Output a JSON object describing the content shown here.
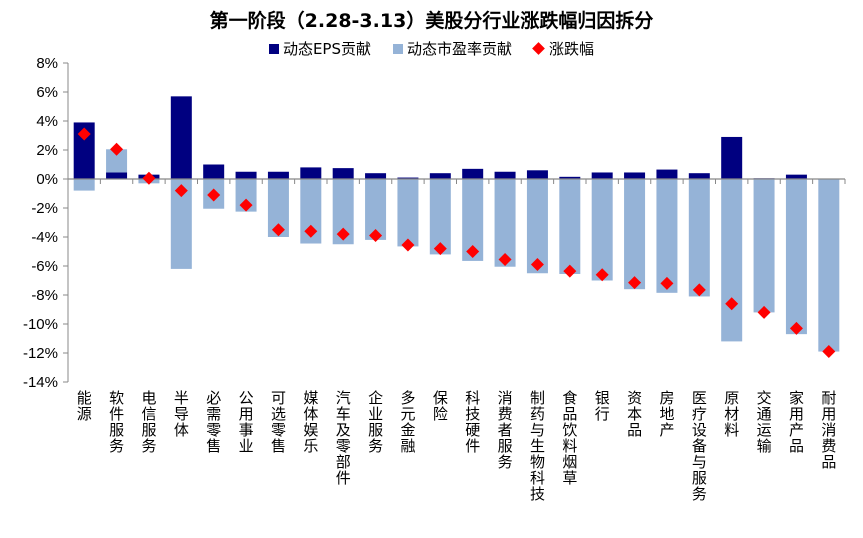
{
  "chart_data": {
    "type": "bar",
    "title": "第一阶段（2.28-3.13）美股分行业涨跌幅归因拆分",
    "xlabel": "",
    "ylabel": "",
    "ylim": [
      -14,
      8
    ],
    "yticks": [
      "8%",
      "6%",
      "4%",
      "2%",
      "0%",
      "-2%",
      "-4%",
      "-6%",
      "-8%",
      "-10%",
      "-12%",
      "-14%"
    ],
    "ytick_values": [
      8,
      6,
      4,
      2,
      0,
      -2,
      -4,
      -6,
      -8,
      -10,
      -12,
      -14
    ],
    "grid": false,
    "legend_position": "top",
    "stacked": true,
    "categories": [
      "能源",
      "软件服务",
      "电信服务",
      "半导体",
      "必需零售",
      "公用事业",
      "可选零售",
      "媒体娱乐",
      "汽车及零部件",
      "企业服务",
      "多元金融",
      "保险",
      "科技硬件",
      "消费者服务",
      "制药与生物科技",
      "食品饮料烟草",
      "银行",
      "资本品",
      "房地产",
      "医疗设备与服务",
      "原材料",
      "交通运输",
      "家用产品",
      "耐用消费品"
    ],
    "series": [
      {
        "name": "动态EPS贡献",
        "type": "bar",
        "color": "#000080",
        "values": [
          3.9,
          0.45,
          0.3,
          5.7,
          1.0,
          0.5,
          0.5,
          0.8,
          0.75,
          0.4,
          0.1,
          0.4,
          0.7,
          0.5,
          0.6,
          0.15,
          0.45,
          0.45,
          0.65,
          0.4,
          2.9,
          0.05,
          0.3,
          0.0
        ]
      },
      {
        "name": "动态市盈率贡献",
        "type": "bar",
        "color": "#95B3D7",
        "values": [
          -0.8,
          1.6,
          -0.3,
          -6.2,
          -2.05,
          -2.25,
          -4.0,
          -4.45,
          -4.5,
          -4.2,
          -4.65,
          -5.2,
          -5.65,
          -6.05,
          -6.5,
          -6.55,
          -7.0,
          -7.6,
          -7.85,
          -8.1,
          -11.2,
          -9.2,
          -10.7,
          -11.9
        ]
      },
      {
        "name": "涨跌幅",
        "type": "scatter",
        "marker": "diamond",
        "color": "#FF0000",
        "values": [
          3.1,
          2.05,
          0.05,
          -0.8,
          -1.1,
          -1.8,
          -3.5,
          -3.6,
          -3.8,
          -3.9,
          -4.55,
          -4.8,
          -5.0,
          -5.55,
          -5.9,
          -6.35,
          -6.6,
          -7.15,
          -7.2,
          -7.65,
          -8.6,
          -9.2,
          -10.3,
          -11.9
        ]
      }
    ]
  }
}
